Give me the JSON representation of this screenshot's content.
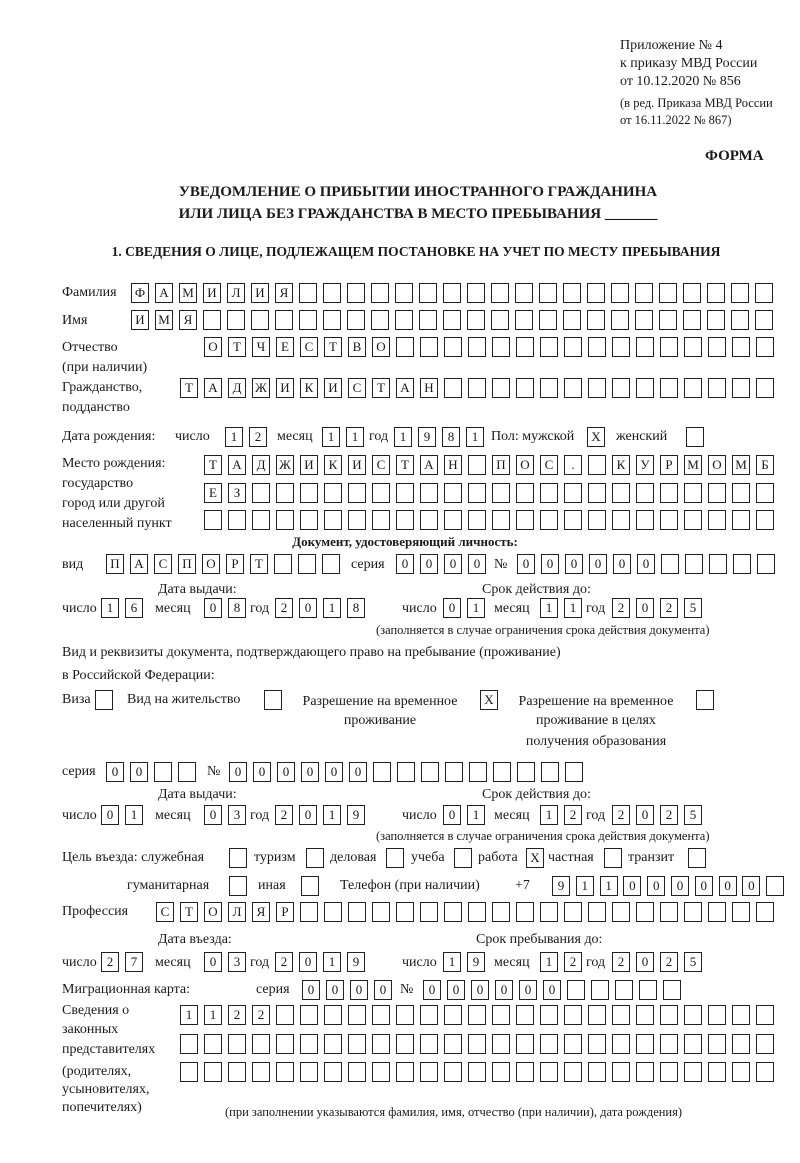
{
  "header": {
    "appendix": [
      "Приложение № 4",
      "к приказу МВД России",
      "от 10.12.2020 № 856"
    ],
    "revision": [
      "(в ред. Приказа МВД России",
      "от 16.11.2022 № 867)"
    ],
    "form_label": "ФОРМА",
    "title": [
      "УВЕДОМЛЕНИЕ О ПРИБЫТИИ ИНОСТРАННОГО ГРАЖДАНИНА",
      "ИЛИ ЛИЦА БЕЗ ГРАЖДАНСТВА В МЕСТО ПРЕБЫВАНИЯ _______"
    ],
    "section1": "1. СВЕДЕНИЯ О ЛИЦЕ, ПОДЛЕЖАЩЕМ ПОСТАНОВКЕ НА УЧЕТ ПО МЕСТУ ПРЕБЫВАНИЯ"
  },
  "labels": {
    "surname": "Фамилия",
    "name": "Имя",
    "patronymic": [
      "Отчество",
      "(при наличии)"
    ],
    "citizenship": [
      "Гражданство,",
      "подданство"
    ],
    "birth_date": "Дата рождения:",
    "day": "число",
    "month": "месяц",
    "year": "год",
    "sex": "Пол: мужской",
    "female": "женский",
    "birth_place": [
      "Место рождения:",
      "государство",
      "город или другой",
      "населенный пункт"
    ],
    "id_doc": "Документ, удостоверяющий личность:",
    "kind": "вид",
    "series": "серия",
    "number": "№",
    "issue_date": "Дата выдачи:",
    "valid_until": "Срок действия до:",
    "validity_note": "(заполняется в случае ограничения срока действия документа)",
    "stay_doc": [
      "Вид и реквизиты документа, подтверждающего право на пребывание (проживание)",
      "в Российской Федерации:"
    ],
    "visa": "Виза",
    "residence_permit": "Вид на жительство",
    "temp_residence": [
      "Разрешение на временное",
      "проживание"
    ],
    "temp_residence_edu": [
      "Разрешение на временное",
      "проживание в целях",
      "получения образования"
    ],
    "purpose": "Цель въезда: служебная",
    "tourism": "туризм",
    "business": "деловая",
    "study": "учеба",
    "work": "работа",
    "private": "частная",
    "transit": "транзит",
    "humanitarian": "гуманитарная",
    "other": "иная",
    "phone": "Телефон (при наличии)",
    "phone_prefix": "+7",
    "profession": "Профессия",
    "entry_date": "Дата въезда:",
    "stay_until": "Срок пребывания до:",
    "migration_card": "Миграционная карта:",
    "representatives": [
      "Сведения о",
      "законных",
      "представителях",
      "(родителях,",
      "усыновителях,",
      "попечителях)"
    ],
    "representatives_note": "(при заполнении указываются фамилия, имя, отчество (при наличии), дата рождения)"
  },
  "person": {
    "surname": "ФАМИЛИЯ",
    "name": "ИМЯ",
    "patronymic": "ОТЧЕСТВО",
    "citizenship": "ТАДЖИКИСТАН",
    "birth_day": "12",
    "birth_month": "11",
    "birth_year": "1981",
    "sex_male": "X",
    "sex_female": "",
    "birth_place": [
      "ТАДЖИКИСТАН ПОС. КУРМОМБ",
      "ЕЗ",
      ""
    ]
  },
  "id_document": {
    "kind": "ПАСПОРТ",
    "series": "0000",
    "number": "000000",
    "issue_day": "16",
    "issue_month": "08",
    "issue_year": "2018",
    "valid_day": "01",
    "valid_month": "11",
    "valid_year": "2025"
  },
  "stay_document": {
    "visa": "",
    "residence_permit": "",
    "temp_residence": "X",
    "temp_residence_edu": "",
    "series": "00",
    "number": "000000",
    "issue_day": "01",
    "issue_month": "03",
    "issue_year": "2019",
    "valid_day": "01",
    "valid_month": "12",
    "valid_year": "2025"
  },
  "purpose": {
    "official": "",
    "tourism": "",
    "business": "",
    "study": "",
    "work": "X",
    "private": "",
    "transit": "",
    "humanitarian": "",
    "other": ""
  },
  "phone": "911000000",
  "profession": "СТОЛЯР",
  "entry": {
    "day": "27",
    "month": "03",
    "year": "2019",
    "stay_day": "19",
    "stay_month": "12",
    "stay_year": "2025"
  },
  "migration_card": {
    "series": "0000",
    "number": "000000"
  },
  "representatives": [
    "1122",
    "",
    ""
  ]
}
